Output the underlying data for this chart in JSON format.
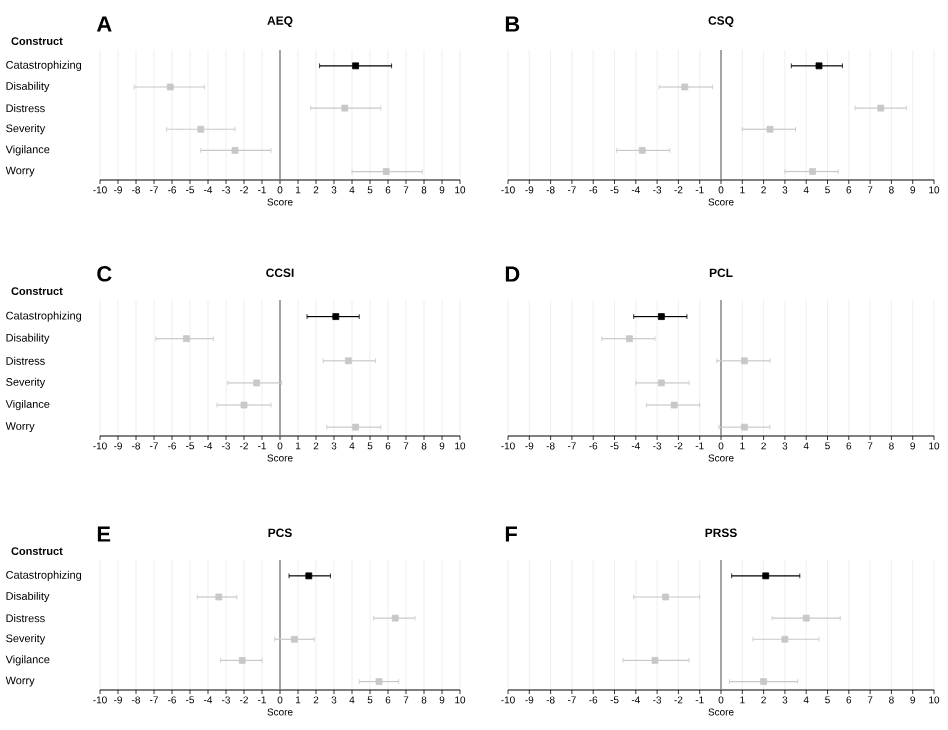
{
  "chart_data": [
    {
      "type": "scatter",
      "orientation": "horizontal",
      "title": "AEQ",
      "annotations": [
        "A"
      ],
      "xlabel": "Score",
      "ylabel": "Construct",
      "categories": [
        "Catastrophizing",
        "Disability",
        "Distress",
        "Severity",
        "Vigilance",
        "Worry"
      ],
      "values": [
        4.2,
        -6.1,
        3.6,
        -4.4,
        -2.5,
        5.9
      ],
      "errors": [
        [
          2.2,
          6.2
        ],
        [
          -8.1,
          -4.2
        ],
        [
          1.7,
          5.6
        ],
        [
          -6.3,
          -2.5
        ],
        [
          -4.4,
          -0.5
        ],
        [
          4.0,
          7.9
        ]
      ],
      "colors": [
        "#000000",
        "#c8c8c8",
        "#c8c8c8",
        "#c8c8c8",
        "#c8c8c8",
        "#c8c8c8"
      ],
      "xlim": [
        -10,
        10
      ],
      "xticks": [
        -10,
        -9,
        -8,
        -7,
        -6,
        -5,
        -4,
        -3,
        -2,
        -1,
        0,
        1,
        2,
        3,
        4,
        5,
        6,
        7,
        8,
        9,
        10
      ],
      "grid": "x",
      "ref_lines": [
        {
          "axis": "x",
          "value": 0,
          "color": "#808080"
        }
      ],
      "marker": "square"
    },
    {
      "type": "scatter",
      "orientation": "horizontal",
      "title": "CSQ",
      "annotations": [
        "B"
      ],
      "xlabel": "Score",
      "categories": [
        null,
        null,
        null,
        null,
        null,
        null
      ],
      "values": [
        4.6,
        -1.7,
        7.5,
        2.3,
        -3.7,
        4.3
      ],
      "errors": [
        [
          3.3,
          5.7
        ],
        [
          -2.9,
          -0.4
        ],
        [
          6.3,
          8.7
        ],
        [
          1.0,
          3.5
        ],
        [
          -4.9,
          -2.4
        ],
        [
          3.0,
          5.5
        ]
      ],
      "colors": [
        "#000000",
        "#c8c8c8",
        "#c8c8c8",
        "#c8c8c8",
        "#c8c8c8",
        "#c8c8c8"
      ],
      "xlim": [
        -10,
        10
      ],
      "xticks": [
        -10,
        -9,
        -8,
        -7,
        -6,
        -5,
        -4,
        -3,
        -2,
        -1,
        0,
        1,
        2,
        3,
        4,
        5,
        6,
        7,
        8,
        9,
        10
      ],
      "grid": "x",
      "ref_lines": [
        {
          "axis": "x",
          "value": 0,
          "color": "#808080"
        }
      ],
      "marker": "square"
    },
    {
      "type": "scatter",
      "orientation": "horizontal",
      "title": "CCSI",
      "annotations": [
        "C"
      ],
      "xlabel": "Score",
      "ylabel": "Construct",
      "categories": [
        "Catastrophizing",
        "Disability",
        "Distress",
        "Severity",
        "Vigilance",
        "Worry"
      ],
      "values": [
        3.1,
        -5.2,
        3.8,
        -1.3,
        -2.0,
        4.2
      ],
      "errors": [
        [
          1.5,
          4.4
        ],
        [
          -6.9,
          -3.7
        ],
        [
          2.4,
          5.3
        ],
        [
          -2.9,
          0.1
        ],
        [
          -3.5,
          -0.5
        ],
        [
          2.6,
          5.6
        ]
      ],
      "colors": [
        "#000000",
        "#c8c8c8",
        "#c8c8c8",
        "#c8c8c8",
        "#c8c8c8",
        "#c8c8c8"
      ],
      "xlim": [
        -10,
        10
      ],
      "xticks": [
        -10,
        -9,
        -8,
        -7,
        -6,
        -5,
        -4,
        -3,
        -2,
        -1,
        0,
        1,
        2,
        3,
        4,
        5,
        6,
        7,
        8,
        9,
        10
      ],
      "grid": "x",
      "ref_lines": [
        {
          "axis": "x",
          "value": 0,
          "color": "#808080"
        }
      ],
      "marker": "square"
    },
    {
      "type": "scatter",
      "orientation": "horizontal",
      "title": "PCL",
      "annotations": [
        "D"
      ],
      "xlabel": "Score",
      "categories": [
        null,
        null,
        null,
        null,
        null,
        null
      ],
      "values": [
        -2.8,
        -4.3,
        1.1,
        -2.8,
        -2.2,
        1.1
      ],
      "errors": [
        [
          -4.1,
          -1.6
        ],
        [
          -5.6,
          -3.1
        ],
        [
          -0.2,
          2.3
        ],
        [
          -4.0,
          -1.5
        ],
        [
          -3.5,
          -1.0
        ],
        [
          -0.1,
          2.3
        ]
      ],
      "colors": [
        "#000000",
        "#c8c8c8",
        "#c8c8c8",
        "#c8c8c8",
        "#c8c8c8",
        "#c8c8c8"
      ],
      "xlim": [
        -10,
        10
      ],
      "xticks": [
        -10,
        -9,
        -8,
        -7,
        -6,
        -5,
        -4,
        -3,
        -2,
        -1,
        0,
        1,
        2,
        3,
        4,
        5,
        6,
        7,
        8,
        9,
        10
      ],
      "grid": "x",
      "ref_lines": [
        {
          "axis": "x",
          "value": 0,
          "color": "#808080"
        }
      ],
      "marker": "square"
    },
    {
      "type": "scatter",
      "orientation": "horizontal",
      "title": "PCS",
      "annotations": [
        "E"
      ],
      "xlabel": "Score",
      "ylabel": "Construct",
      "categories": [
        "Catastrophizing",
        "Disability",
        "Distress",
        "Severity",
        "Vigilance",
        "Worry"
      ],
      "values": [
        1.6,
        -3.4,
        6.4,
        0.8,
        -2.1,
        5.5
      ],
      "errors": [
        [
          0.5,
          2.8
        ],
        [
          -4.6,
          -2.4
        ],
        [
          5.2,
          7.5
        ],
        [
          -0.3,
          1.9
        ],
        [
          -3.3,
          -1.0
        ],
        [
          4.4,
          6.6
        ]
      ],
      "colors": [
        "#000000",
        "#c8c8c8",
        "#c8c8c8",
        "#c8c8c8",
        "#c8c8c8",
        "#c8c8c8"
      ],
      "xlim": [
        -10,
        10
      ],
      "xticks": [
        -10,
        -9,
        -8,
        -7,
        -6,
        -5,
        -4,
        -3,
        -2,
        -1,
        0,
        1,
        2,
        3,
        4,
        5,
        6,
        7,
        8,
        9,
        10
      ],
      "grid": "x",
      "ref_lines": [
        {
          "axis": "x",
          "value": 0,
          "color": "#808080"
        }
      ],
      "marker": "square"
    },
    {
      "type": "scatter",
      "orientation": "horizontal",
      "title": "PRSS",
      "annotations": [
        "F"
      ],
      "xlabel": "Score",
      "categories": [
        null,
        null,
        null,
        null,
        null,
        null
      ],
      "values": [
        2.1,
        -2.6,
        4.0,
        3.0,
        -3.1,
        2.0
      ],
      "errors": [
        [
          0.5,
          3.7
        ],
        [
          -4.1,
          -1.0
        ],
        [
          2.4,
          5.6
        ],
        [
          1.5,
          4.6
        ],
        [
          -4.6,
          -1.5
        ],
        [
          0.4,
          3.6
        ]
      ],
      "colors": [
        "#000000",
        "#c8c8c8",
        "#c8c8c8",
        "#c8c8c8",
        "#c8c8c8",
        "#c8c8c8"
      ],
      "xlim": [
        -10,
        10
      ],
      "xticks": [
        -10,
        -9,
        -8,
        -7,
        -6,
        -5,
        -4,
        -3,
        -2,
        -1,
        0,
        1,
        2,
        3,
        4,
        5,
        6,
        7,
        8,
        9,
        10
      ],
      "grid": "x",
      "ref_lines": [
        {
          "axis": "x",
          "value": 0,
          "color": "#808080"
        }
      ],
      "marker": "square"
    }
  ]
}
